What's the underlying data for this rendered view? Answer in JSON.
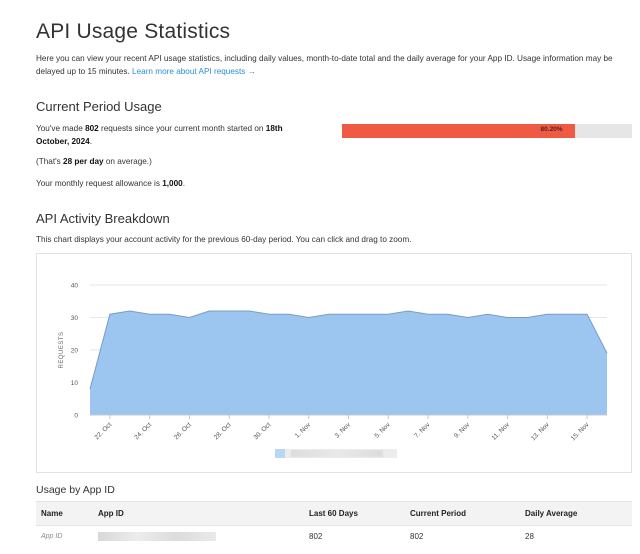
{
  "page": {
    "title": "API Usage Statistics",
    "intro": "Here you can view your recent API usage statistics, including daily values, month-to-date total and the daily average for your App ID. Usage information may be delayed up to 15 minutes.",
    "intro_link": "Learn more about API requests →"
  },
  "current_period": {
    "heading": "Current Period Usage",
    "line1_prefix": "You've made ",
    "requests": "802",
    "line1_middle": " requests since your current month started on ",
    "start_date": "18th October, 2024",
    "line1_suffix": ".",
    "avg_prefix": "(That's ",
    "avg_value": "28 per day",
    "avg_suffix": " on average.)",
    "allow_prefix": "Your monthly request allowance is ",
    "allow_value": "1,000",
    "allow_suffix": ".",
    "progress_label": "80.20%",
    "progress_fraction": 0.802,
    "progress_color": "#ef5a45"
  },
  "breakdown": {
    "heading": "API Activity Breakdown",
    "description": "This chart displays your account activity for the previous 60-day period. You can click and drag to zoom."
  },
  "chart_data": {
    "type": "area",
    "ylabel": "REQUESTS",
    "ylim": [
      0,
      40
    ],
    "yticks": [
      0,
      10,
      20,
      30,
      40
    ],
    "grid": true,
    "x_ticks": [
      "22. Oct",
      "24. Oct",
      "26. Oct",
      "28. Oct",
      "30. Oct",
      "1. Nov",
      "3. Nov",
      "5. Nov",
      "7. Nov",
      "9. Nov",
      "11. Nov",
      "13. Nov",
      "15. Nov"
    ],
    "x": [
      "21. Oct",
      "22. Oct",
      "23. Oct",
      "24. Oct",
      "25. Oct",
      "26. Oct",
      "27. Oct",
      "28. Oct",
      "29. Oct",
      "30. Oct",
      "31. Oct",
      "1. Nov",
      "2. Nov",
      "3. Nov",
      "4. Nov",
      "5. Nov",
      "6. Nov",
      "7. Nov",
      "8. Nov",
      "9. Nov",
      "10. Nov",
      "11. Nov",
      "12. Nov",
      "13. Nov",
      "14. Nov",
      "15. Nov",
      "16. Nov"
    ],
    "values": [
      8,
      31,
      32,
      31,
      31,
      30,
      32,
      32,
      32,
      31,
      31,
      30,
      31,
      31,
      31,
      31,
      32,
      31,
      31,
      30,
      31,
      30,
      30,
      31,
      31,
      31,
      19
    ],
    "fill_color": "#9cc6ef",
    "line_color": "#7a9cc4"
  },
  "usage_table": {
    "heading": "Usage by App ID",
    "columns": [
      "Name",
      "App ID",
      "Last 60 Days",
      "Current Period",
      "Daily Average"
    ],
    "rows": [
      {
        "name": "App ID",
        "last60": "802",
        "current": "802",
        "daily": "28"
      }
    ]
  }
}
